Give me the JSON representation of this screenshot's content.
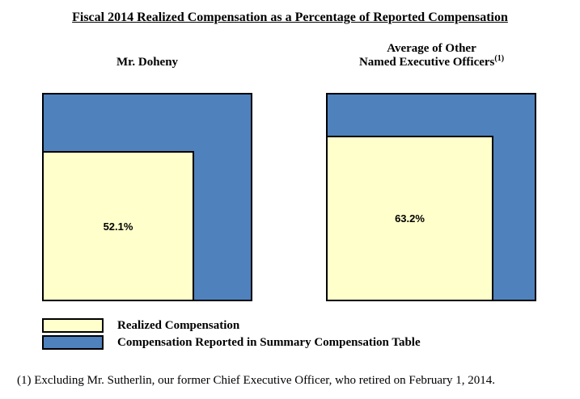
{
  "title": "Fiscal 2014 Realized Compensation as a Percentage of Reported Compensation",
  "panels": [
    {
      "header_lines": [
        "Mr. Doheny"
      ],
      "value": 52.1,
      "value_label": "52.1%"
    },
    {
      "header_lines": [
        "Average of Other",
        "Named Executive Officers"
      ],
      "header_superscript": "(1)",
      "value": 63.2,
      "value_label": "63.2%"
    }
  ],
  "legend": [
    {
      "label": "Realized Compensation",
      "color": "#FFFFCC"
    },
    {
      "label": "Compensation Reported in Summary Compensation Table",
      "color": "#4F81BD"
    }
  ],
  "footnote": "(1) Excluding Mr. Sutherlin, our former Chief Executive Officer, who retired on February 1, 2014.",
  "colors": {
    "realized": "#FFFFCC",
    "reported": "#4F81BD",
    "border": "#000000"
  },
  "chart_data": {
    "type": "area",
    "subtype": "nested-proportional-squares",
    "title": "Fiscal 2014 Realized Compensation as a Percentage of Reported Compensation",
    "categories": [
      "Mr. Doheny",
      "Average of Other Named Executive Officers(1)"
    ],
    "series": [
      {
        "name": "Realized Compensation",
        "values": [
          52.1,
          63.2
        ],
        "color": "#FFFFCC"
      },
      {
        "name": "Compensation Reported in Summary Compensation Table",
        "values": [
          100,
          100
        ],
        "color": "#4F81BD"
      }
    ],
    "value_unit": "% of reported compensation",
    "data_labels": [
      "52.1%",
      "63.2%"
    ],
    "legend_position": "bottom-left",
    "notes": "Inner square area represents realized compensation as a percentage of the outer square (reported compensation); inner square side = sqrt(value/100) of outer side.",
    "footnote": "(1) Excluding Mr. Sutherlin, our former Chief Executive Officer, who retired on February 1, 2014."
  }
}
